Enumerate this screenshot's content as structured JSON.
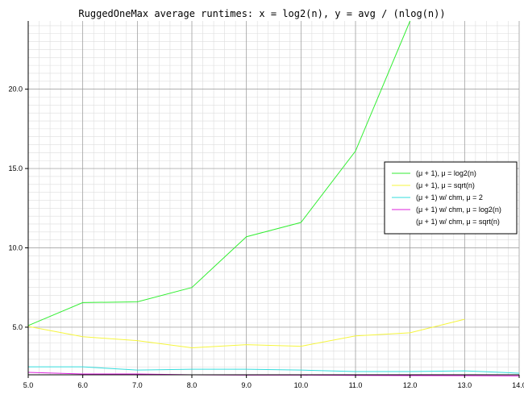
{
  "chart_data": {
    "type": "line",
    "title": "RuggedOneMax average runtimes: x = log2(n), y = avg / (nlog(n))",
    "xlabel": "",
    "ylabel": "",
    "xlim": [
      5.0,
      14.0
    ],
    "ylim": [
      2.0,
      24.3
    ],
    "grid": true,
    "grid_minor": true,
    "legend_position": "right",
    "x_ticks": [
      5.0,
      6.0,
      7.0,
      8.0,
      9.0,
      10.0,
      11.0,
      12.0,
      13.0,
      14.0
    ],
    "x_tick_labels": [
      "5.0",
      "6.0",
      "7.0",
      "8.0",
      "9.0",
      "10.0",
      "11.0",
      "12.0",
      "13.0",
      "14.0"
    ],
    "y_ticks": [
      5.0,
      10.0,
      15.0,
      20.0
    ],
    "y_tick_labels": [
      "5.0",
      "10.0",
      "15.0",
      "20.0"
    ],
    "series": [
      {
        "name": "(μ + 1), μ = log2(n)",
        "color": "#33ee33",
        "x": [
          5,
          6,
          7,
          8,
          9,
          10,
          11,
          12
        ],
        "y": [
          5.1,
          6.55,
          6.6,
          7.5,
          10.7,
          11.6,
          16.1,
          24.3
        ]
      },
      {
        "name": "(μ + 1), μ = sqrt(n)",
        "color": "#f5f53d",
        "x": [
          5,
          6,
          7,
          8,
          9,
          10,
          11,
          12,
          13
        ],
        "y": [
          5.05,
          4.4,
          4.15,
          3.7,
          3.9,
          3.8,
          4.45,
          4.65,
          5.5
        ]
      },
      {
        "name": "(μ + 1) w/ chm, μ = 2",
        "color": "#33dddd",
        "x": [
          5,
          6,
          7,
          8,
          9,
          10,
          11,
          12,
          13,
          14
        ],
        "y": [
          2.5,
          2.5,
          2.3,
          2.35,
          2.35,
          2.3,
          2.2,
          2.2,
          2.25,
          2.1
        ]
      },
      {
        "name": "(μ + 1) w/ chm, μ = log2(n)",
        "color": "#dd22dd",
        "x": [
          5,
          6,
          7,
          8,
          9,
          10,
          11,
          12,
          13,
          14
        ],
        "y": [
          2.15,
          2.05,
          2.05,
          2.0,
          1.98,
          1.98,
          1.96,
          1.95,
          1.94,
          1.93
        ]
      },
      {
        "name": "(μ + 1) w/ chm, μ = sqrt(n)",
        "color": "#ffffff",
        "x": [
          5,
          6,
          7,
          8,
          9,
          10,
          11,
          12,
          13,
          14
        ],
        "y": [
          1.95,
          1.92,
          1.9,
          1.9,
          1.88,
          1.88,
          1.87,
          1.86,
          1.86,
          1.85
        ]
      }
    ]
  }
}
